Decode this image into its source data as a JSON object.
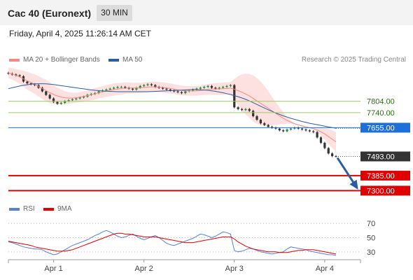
{
  "header": {
    "title": "Cac 40 (Euronext)",
    "timeframe": "30 MIN"
  },
  "datetime": "Friday, April 4, 2025 11:26:14 AM CET",
  "legend": {
    "ma20_bb": {
      "label": "MA 20 + Bollinger Bands",
      "color": "#f28b82"
    },
    "ma50": {
      "label": "MA 50",
      "color": "#2e5d9f"
    },
    "rsi": {
      "label": "RSI",
      "color": "#5b7fd6"
    },
    "ma9": {
      "label": "9MA",
      "color": "#e00000"
    }
  },
  "source": "Research © 2025 Trading Central",
  "colors": {
    "candle_up": "#1e8a3c",
    "candle_down": "#333333",
    "resistance": "#9ccc65",
    "pivot": "#1e6fd9",
    "support": "#e00000",
    "forecast_arrow": "#2e5d9f"
  },
  "chart_data": [
    {
      "type": "candlestick",
      "ylim": [
        7270,
        8000
      ],
      "x_tick_labels": [
        "Apr 1",
        "Apr 2",
        "Apr 3",
        "Apr 4"
      ],
      "levels": [
        {
          "label": "7804.00",
          "value": 7804,
          "kind": "resistance"
        },
        {
          "label": "7740.00",
          "value": 7740,
          "kind": "resistance"
        },
        {
          "label": "7655.00",
          "value": 7655,
          "kind": "pivot"
        },
        {
          "label": "7493.00",
          "value": 7493,
          "kind": "last"
        },
        {
          "label": "7385.00",
          "value": 7385,
          "kind": "support"
        },
        {
          "label": "7300.00",
          "value": 7300,
          "kind": "support"
        }
      ],
      "close": [
        7960,
        7955,
        7950,
        7945,
        7915,
        7905,
        7900,
        7895,
        7880,
        7860,
        7840,
        7820,
        7800,
        7790,
        7795,
        7805,
        7810,
        7815,
        7820,
        7825,
        7830,
        7840,
        7845,
        7850,
        7860,
        7865,
        7870,
        7875,
        7880,
        7885,
        7885,
        7880,
        7875,
        7870,
        7880,
        7890,
        7895,
        7900,
        7895,
        7885,
        7880,
        7875,
        7870,
        7865,
        7860,
        7855,
        7850,
        7860,
        7865,
        7870,
        7875,
        7880,
        7885,
        7890,
        7880,
        7875,
        7880,
        7885,
        7890,
        7895,
        7770,
        7760,
        7755,
        7760,
        7750,
        7720,
        7700,
        7680,
        7670,
        7660,
        7655,
        7650,
        7640,
        7635,
        7645,
        7650,
        7655,
        7650,
        7645,
        7640,
        7635,
        7630,
        7600,
        7570,
        7540,
        7510,
        7495,
        7493
      ],
      "ma20": [
        7965,
        7958,
        7950,
        7942,
        7930,
        7920,
        7910,
        7900,
        7888,
        7876,
        7864,
        7852,
        7842,
        7834,
        7828,
        7824,
        7822,
        7822,
        7824,
        7827,
        7831,
        7836,
        7841,
        7846,
        7852,
        7857,
        7862,
        7866,
        7870,
        7873,
        7876,
        7878,
        7879,
        7879,
        7879,
        7880,
        7882,
        7884,
        7885,
        7885,
        7884,
        7882,
        7879,
        7876,
        7872,
        7868,
        7865,
        7863,
        7862,
        7862,
        7863,
        7865,
        7867,
        7870,
        7872,
        7873,
        7874,
        7875,
        7876,
        7878,
        7872,
        7864,
        7855,
        7845,
        7834,
        7820,
        7806,
        7792,
        7778,
        7764,
        7750,
        7736,
        7722,
        7708,
        7696,
        7686,
        7678,
        7671,
        7665,
        7660,
        7655,
        7650,
        7642,
        7632,
        7620,
        7605,
        7590,
        7575
      ],
      "bb_upper": [
        7995,
        7990,
        7985,
        7982,
        7975,
        7970,
        7962,
        7955,
        7945,
        7935,
        7925,
        7910,
        7895,
        7880,
        7870,
        7860,
        7855,
        7852,
        7852,
        7855,
        7860,
        7866,
        7872,
        7878,
        7884,
        7890,
        7895,
        7900,
        7904,
        7907,
        7909,
        7910,
        7910,
        7909,
        7908,
        7909,
        7911,
        7913,
        7914,
        7914,
        7913,
        7911,
        7908,
        7904,
        7900,
        7896,
        7893,
        7890,
        7889,
        7889,
        7890,
        7892,
        7895,
        7900,
        7904,
        7907,
        7909,
        7910,
        7911,
        7912,
        7930,
        7945,
        7955,
        7960,
        7958,
        7950,
        7935,
        7915,
        7890,
        7860,
        7830,
        7800,
        7770,
        7740,
        7715,
        7695,
        7680,
        7670,
        7662,
        7658,
        7656,
        7656,
        7655,
        7654,
        7652,
        7648,
        7640,
        7630
      ],
      "bb_lower": [
        7935,
        7926,
        7915,
        7902,
        7885,
        7870,
        7858,
        7845,
        7831,
        7817,
        7803,
        7794,
        7789,
        7788,
        7786,
        7788,
        7789,
        7792,
        7796,
        7799,
        7802,
        7806,
        7810,
        7814,
        7820,
        7824,
        7829,
        7832,
        7836,
        7839,
        7843,
        7846,
        7848,
        7849,
        7850,
        7851,
        7853,
        7855,
        7856,
        7856,
        7855,
        7853,
        7850,
        7848,
        7844,
        7840,
        7837,
        7836,
        7835,
        7835,
        7836,
        7838,
        7839,
        7840,
        7840,
        7839,
        7839,
        7840,
        7841,
        7844,
        7814,
        7783,
        7755,
        7730,
        7710,
        7690,
        7677,
        7669,
        7666,
        7668,
        7670,
        7672,
        7674,
        7676,
        7677,
        7677,
        7676,
        7672,
        7668,
        7662,
        7654,
        7644,
        7629,
        7610,
        7588,
        7562,
        7540,
        7520
      ],
      "ma50": [
        7875,
        7880,
        7885,
        7890,
        7894,
        7897,
        7900,
        7902,
        7903,
        7903,
        7902,
        7900,
        7898,
        7895,
        7892,
        7889,
        7886,
        7883,
        7880,
        7877,
        7874,
        7871,
        7868,
        7866,
        7864,
        7862,
        7861,
        7860,
        7859,
        7858,
        7858,
        7858,
        7858,
        7858,
        7858,
        7858,
        7858,
        7858,
        7859,
        7860,
        7861,
        7862,
        7863,
        7864,
        7865,
        7866,
        7867,
        7868,
        7869,
        7870,
        7870,
        7869,
        7868,
        7866,
        7863,
        7860,
        7856,
        7852,
        7847,
        7842,
        7836,
        7830,
        7823,
        7815,
        7806,
        7796,
        7786,
        7776,
        7766,
        7756,
        7747,
        7738,
        7730,
        7722,
        7715,
        7708,
        7702,
        7696,
        7690,
        7685,
        7680,
        7676,
        7672,
        7668,
        7664,
        7660,
        7656,
        7652
      ]
    },
    {
      "type": "line",
      "title": "RSI",
      "ylim": [
        20,
        75
      ],
      "y_tick_labels": [
        "70",
        "50",
        "30"
      ],
      "series": [
        {
          "name": "RSI",
          "values": [
            44,
            43,
            41,
            39,
            37,
            36,
            35,
            34,
            34,
            33,
            30,
            28,
            26,
            27,
            30,
            33,
            36,
            39,
            41,
            43,
            45,
            47,
            50,
            53,
            55,
            58,
            60,
            58,
            55,
            52,
            50,
            51,
            53,
            55,
            52,
            49,
            47,
            49,
            51,
            53,
            50,
            46,
            42,
            40,
            39,
            41,
            43,
            45,
            47,
            49,
            52,
            55,
            54,
            52,
            50,
            52,
            55,
            58,
            57,
            55,
            32,
            30,
            31,
            33,
            35,
            34,
            32,
            30,
            29,
            28,
            27,
            28,
            29,
            30,
            34,
            37,
            36,
            35,
            34,
            33,
            31,
            30,
            29,
            28,
            27,
            26,
            26,
            25
          ]
        },
        {
          "name": "9MA",
          "values": [
            45,
            44,
            43,
            42,
            41,
            40,
            39,
            37,
            36,
            35,
            34,
            33,
            32,
            31,
            31,
            31,
            32,
            33,
            35,
            37,
            39,
            41,
            43,
            45,
            47,
            49,
            51,
            53,
            55,
            56,
            56,
            55,
            55,
            54,
            53,
            52,
            51,
            51,
            51,
            51,
            50,
            49,
            48,
            47,
            46,
            45,
            44,
            43,
            43,
            43,
            44,
            45,
            46,
            47,
            48,
            49,
            50,
            51,
            51,
            51,
            48,
            44,
            41,
            38,
            36,
            34,
            33,
            32,
            31,
            30,
            30,
            30,
            29,
            29,
            29,
            30,
            31,
            32,
            32,
            33,
            33,
            33,
            32,
            31,
            30,
            29,
            28,
            27
          ]
        }
      ]
    }
  ]
}
